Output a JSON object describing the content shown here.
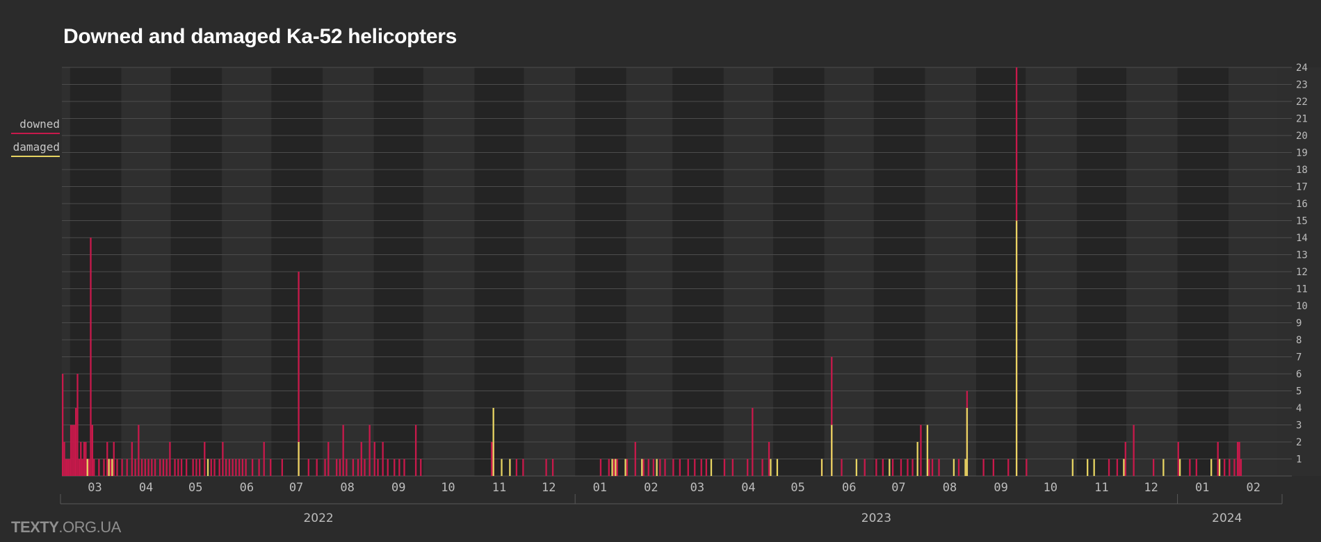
{
  "chart_data": {
    "type": "bar",
    "title": "Downed and damaged Ka-52 helicopters",
    "xlabel": "",
    "ylabel": "",
    "ylim": [
      0,
      24
    ],
    "y_ticks": [
      1,
      2,
      3,
      4,
      5,
      6,
      7,
      8,
      9,
      10,
      11,
      12,
      13,
      14,
      15,
      16,
      17,
      18,
      19,
      20,
      21,
      22,
      23,
      24
    ],
    "x_range": [
      "2022-02-24",
      "2024-02-29"
    ],
    "month_labels": [
      {
        "date": "2022-03-16",
        "label": "03"
      },
      {
        "date": "2022-04-16",
        "label": "04"
      },
      {
        "date": "2022-05-16",
        "label": "05"
      },
      {
        "date": "2022-06-16",
        "label": "06"
      },
      {
        "date": "2022-07-16",
        "label": "07"
      },
      {
        "date": "2022-08-16",
        "label": "08"
      },
      {
        "date": "2022-09-16",
        "label": "09"
      },
      {
        "date": "2022-10-16",
        "label": "10"
      },
      {
        "date": "2022-11-16",
        "label": "11"
      },
      {
        "date": "2022-12-16",
        "label": "12"
      },
      {
        "date": "2023-01-16",
        "label": "01"
      },
      {
        "date": "2023-02-16",
        "label": "02"
      },
      {
        "date": "2023-03-16",
        "label": "03"
      },
      {
        "date": "2023-04-16",
        "label": "04"
      },
      {
        "date": "2023-05-16",
        "label": "05"
      },
      {
        "date": "2023-06-16",
        "label": "06"
      },
      {
        "date": "2023-07-16",
        "label": "07"
      },
      {
        "date": "2023-08-16",
        "label": "08"
      },
      {
        "date": "2023-09-16",
        "label": "09"
      },
      {
        "date": "2023-10-16",
        "label": "10"
      },
      {
        "date": "2023-11-16",
        "label": "11"
      },
      {
        "date": "2023-12-16",
        "label": "12"
      },
      {
        "date": "2024-01-16",
        "label": "01"
      },
      {
        "date": "2024-02-16",
        "label": "02"
      }
    ],
    "year_labels": [
      {
        "label": "2022",
        "start": "2022-02-24",
        "end": "2022-12-31"
      },
      {
        "label": "2023",
        "start": "2023-01-01",
        "end": "2023-12-31"
      },
      {
        "label": "2024",
        "start": "2024-01-01",
        "end": "2024-02-29"
      }
    ],
    "legend": {
      "position": "left",
      "entries": [
        {
          "name": "downed",
          "color": "#c8194b"
        },
        {
          "name": "damaged",
          "color": "#e7d462"
        }
      ]
    },
    "series": [
      {
        "name": "downed",
        "color": "#c8194b",
        "points": [
          [
            "2022-02-24",
            6
          ],
          [
            "2022-02-25",
            2
          ],
          [
            "2022-02-26",
            1
          ],
          [
            "2022-02-27",
            1
          ],
          [
            "2022-02-28",
            1
          ],
          [
            "2022-03-01",
            3
          ],
          [
            "2022-03-02",
            3
          ],
          [
            "2022-03-03",
            3
          ],
          [
            "2022-03-04",
            4
          ],
          [
            "2022-03-05",
            6
          ],
          [
            "2022-03-06",
            1
          ],
          [
            "2022-03-07",
            2
          ],
          [
            "2022-03-08",
            1
          ],
          [
            "2022-03-09",
            2
          ],
          [
            "2022-03-10",
            2
          ],
          [
            "2022-03-11",
            1
          ],
          [
            "2022-03-12",
            1
          ],
          [
            "2022-03-13",
            14
          ],
          [
            "2022-03-14",
            3
          ],
          [
            "2022-03-15",
            1
          ],
          [
            "2022-03-18",
            1
          ],
          [
            "2022-03-21",
            1
          ],
          [
            "2022-03-23",
            2
          ],
          [
            "2022-03-25",
            1
          ],
          [
            "2022-03-27",
            2
          ],
          [
            "2022-03-29",
            1
          ],
          [
            "2022-04-01",
            1
          ],
          [
            "2022-04-04",
            1
          ],
          [
            "2022-04-07",
            2
          ],
          [
            "2022-04-09",
            1
          ],
          [
            "2022-04-11",
            3
          ],
          [
            "2022-04-13",
            1
          ],
          [
            "2022-04-15",
            1
          ],
          [
            "2022-04-17",
            1
          ],
          [
            "2022-04-19",
            1
          ],
          [
            "2022-04-21",
            1
          ],
          [
            "2022-04-24",
            1
          ],
          [
            "2022-04-26",
            1
          ],
          [
            "2022-04-28",
            1
          ],
          [
            "2022-04-30",
            2
          ],
          [
            "2022-05-03",
            1
          ],
          [
            "2022-05-05",
            1
          ],
          [
            "2022-05-07",
            1
          ],
          [
            "2022-05-10",
            1
          ],
          [
            "2022-05-14",
            1
          ],
          [
            "2022-05-16",
            1
          ],
          [
            "2022-05-18",
            1
          ],
          [
            "2022-05-21",
            2
          ],
          [
            "2022-05-25",
            1
          ],
          [
            "2022-05-27",
            1
          ],
          [
            "2022-05-30",
            1
          ],
          [
            "2022-06-01",
            2
          ],
          [
            "2022-06-03",
            1
          ],
          [
            "2022-06-05",
            1
          ],
          [
            "2022-06-07",
            1
          ],
          [
            "2022-06-09",
            1
          ],
          [
            "2022-06-11",
            1
          ],
          [
            "2022-06-13",
            1
          ],
          [
            "2022-06-15",
            1
          ],
          [
            "2022-06-19",
            1
          ],
          [
            "2022-06-23",
            1
          ],
          [
            "2022-06-26",
            2
          ],
          [
            "2022-06-30",
            1
          ],
          [
            "2022-07-07",
            1
          ],
          [
            "2022-07-17",
            12
          ],
          [
            "2022-07-23",
            1
          ],
          [
            "2022-07-28",
            1
          ],
          [
            "2022-08-02",
            1
          ],
          [
            "2022-08-04",
            2
          ],
          [
            "2022-08-09",
            1
          ],
          [
            "2022-08-11",
            1
          ],
          [
            "2022-08-13",
            3
          ],
          [
            "2022-08-15",
            1
          ],
          [
            "2022-08-19",
            1
          ],
          [
            "2022-08-22",
            1
          ],
          [
            "2022-08-24",
            2
          ],
          [
            "2022-08-26",
            1
          ],
          [
            "2022-08-29",
            3
          ],
          [
            "2022-09-01",
            2
          ],
          [
            "2022-09-03",
            1
          ],
          [
            "2022-09-06",
            2
          ],
          [
            "2022-09-09",
            1
          ],
          [
            "2022-09-13",
            1
          ],
          [
            "2022-09-16",
            1
          ],
          [
            "2022-09-19",
            1
          ],
          [
            "2022-09-26",
            3
          ],
          [
            "2022-09-29",
            1
          ],
          [
            "2022-11-11",
            2
          ],
          [
            "2022-11-12",
            2
          ],
          [
            "2022-11-26",
            1
          ],
          [
            "2022-11-30",
            1
          ],
          [
            "2022-12-14",
            1
          ],
          [
            "2022-12-18",
            1
          ],
          [
            "2023-01-16",
            1
          ],
          [
            "2023-01-21",
            1
          ],
          [
            "2023-01-24",
            1
          ],
          [
            "2023-01-26",
            1
          ],
          [
            "2023-02-01",
            1
          ],
          [
            "2023-02-06",
            2
          ],
          [
            "2023-02-11",
            1
          ],
          [
            "2023-02-14",
            1
          ],
          [
            "2023-02-17",
            1
          ],
          [
            "2023-02-21",
            1
          ],
          [
            "2023-02-24",
            1
          ],
          [
            "2023-03-01",
            1
          ],
          [
            "2023-03-05",
            1
          ],
          [
            "2023-03-10",
            1
          ],
          [
            "2023-03-14",
            1
          ],
          [
            "2023-03-18",
            1
          ],
          [
            "2023-03-21",
            1
          ],
          [
            "2023-04-01",
            1
          ],
          [
            "2023-04-06",
            1
          ],
          [
            "2023-04-15",
            1
          ],
          [
            "2023-04-18",
            4
          ],
          [
            "2023-04-24",
            1
          ],
          [
            "2023-04-28",
            2
          ],
          [
            "2023-05-30",
            1
          ],
          [
            "2023-06-05",
            7
          ],
          [
            "2023-06-11",
            1
          ],
          [
            "2023-06-25",
            1
          ],
          [
            "2023-07-02",
            1
          ],
          [
            "2023-07-06",
            1
          ],
          [
            "2023-07-12",
            1
          ],
          [
            "2023-07-17",
            1
          ],
          [
            "2023-07-21",
            1
          ],
          [
            "2023-07-24",
            1
          ],
          [
            "2023-07-29",
            3
          ],
          [
            "2023-08-03",
            1
          ],
          [
            "2023-08-05",
            1
          ],
          [
            "2023-08-09",
            1
          ],
          [
            "2023-08-21",
            1
          ],
          [
            "2023-08-26",
            5
          ],
          [
            "2023-09-05",
            1
          ],
          [
            "2023-09-11",
            1
          ],
          [
            "2023-09-20",
            1
          ],
          [
            "2023-09-25",
            24
          ],
          [
            "2023-10-01",
            1
          ],
          [
            "2023-11-20",
            1
          ],
          [
            "2023-11-25",
            1
          ],
          [
            "2023-11-30",
            2
          ],
          [
            "2023-12-05",
            3
          ],
          [
            "2023-12-17",
            1
          ],
          [
            "2024-01-01",
            2
          ],
          [
            "2024-01-08",
            1
          ],
          [
            "2024-01-12",
            1
          ],
          [
            "2024-01-25",
            2
          ],
          [
            "2024-01-29",
            1
          ],
          [
            "2024-02-01",
            1
          ],
          [
            "2024-02-04",
            1
          ],
          [
            "2024-02-06",
            2
          ],
          [
            "2024-02-07",
            2
          ],
          [
            "2024-02-08",
            1
          ]
        ]
      },
      {
        "name": "damaged",
        "color": "#e7d462",
        "points": [
          [
            "2022-03-11",
            1
          ],
          [
            "2022-03-24",
            1
          ],
          [
            "2022-03-26",
            1
          ],
          [
            "2022-05-23",
            1
          ],
          [
            "2022-07-17",
            2
          ],
          [
            "2022-11-12",
            4
          ],
          [
            "2022-11-17",
            1
          ],
          [
            "2022-11-22",
            1
          ],
          [
            "2023-01-23",
            1
          ],
          [
            "2023-01-25",
            1
          ],
          [
            "2023-01-31",
            1
          ],
          [
            "2023-02-10",
            1
          ],
          [
            "2023-02-19",
            1
          ],
          [
            "2023-03-24",
            1
          ],
          [
            "2023-04-29",
            1
          ],
          [
            "2023-05-03",
            1
          ],
          [
            "2023-05-30",
            1
          ],
          [
            "2023-06-05",
            3
          ],
          [
            "2023-06-20",
            1
          ],
          [
            "2023-07-10",
            1
          ],
          [
            "2023-07-27",
            2
          ],
          [
            "2023-08-02",
            3
          ],
          [
            "2023-08-18",
            1
          ],
          [
            "2023-08-25",
            1
          ],
          [
            "2023-08-26",
            4
          ],
          [
            "2023-09-25",
            15
          ],
          [
            "2023-10-29",
            1
          ],
          [
            "2023-11-07",
            1
          ],
          [
            "2023-11-11",
            1
          ],
          [
            "2023-11-29",
            1
          ],
          [
            "2023-12-23",
            1
          ],
          [
            "2024-01-02",
            1
          ],
          [
            "2024-01-21",
            1
          ],
          [
            "2024-01-26",
            1
          ]
        ]
      }
    ]
  },
  "brand": {
    "bold": "TEXTY",
    "rest": ".ORG.UA"
  }
}
